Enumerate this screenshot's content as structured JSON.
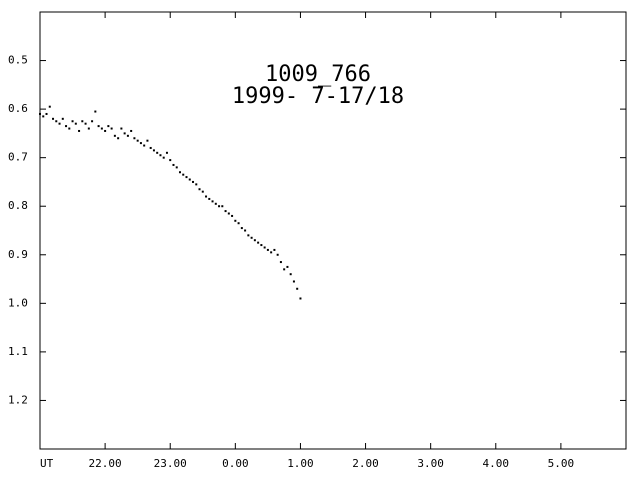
{
  "chart_data": {
    "type": "scatter",
    "title": "1009_766",
    "subtitle": "1999- 7-17/18",
    "xlabel": "UT",
    "xlim": [
      21,
      30
    ],
    "xticks": [
      {
        "value": 22,
        "label": "22.00"
      },
      {
        "value": 23,
        "label": "23.00"
      },
      {
        "value": 24,
        "label": "0.00"
      },
      {
        "value": 25,
        "label": "1.00"
      },
      {
        "value": 26,
        "label": "2.00"
      },
      {
        "value": 27,
        "label": "3.00"
      },
      {
        "value": 28,
        "label": "4.00"
      },
      {
        "value": 29,
        "label": "5.00"
      }
    ],
    "ylim": [
      0.4,
      1.3
    ],
    "invert_y": true,
    "yticks": [
      0.5,
      0.6,
      0.7,
      0.8,
      0.9,
      {
        "value": 1,
        "label": "1.0"
      },
      1.1,
      1.2
    ],
    "color": "#000000",
    "x": [
      21.0,
      21.05,
      21.1,
      21.15,
      21.2,
      21.25,
      21.3,
      21.35,
      21.4,
      21.45,
      21.5,
      21.55,
      21.6,
      21.65,
      21.7,
      21.75,
      21.8,
      21.85,
      21.9,
      21.95,
      22.0,
      22.05,
      22.1,
      22.15,
      22.2,
      22.25,
      22.3,
      22.35,
      22.4,
      22.45,
      22.5,
      22.55,
      22.6,
      22.65,
      22.7,
      22.75,
      22.8,
      22.85,
      22.9,
      22.95,
      23.0,
      23.05,
      23.1,
      23.15,
      23.2,
      23.25,
      23.3,
      23.35,
      23.4,
      23.45,
      23.5,
      23.55,
      23.6,
      23.65,
      23.7,
      23.75,
      23.8,
      23.85,
      23.9,
      23.95,
      24.0,
      24.05,
      24.1,
      24.15,
      24.2,
      24.25,
      24.3,
      24.35,
      24.4,
      24.45,
      24.5,
      24.55,
      24.6,
      24.65,
      24.7,
      24.75,
      24.8,
      24.85,
      24.9,
      24.95,
      25.0
    ],
    "values": [
      0.61,
      0.615,
      0.61,
      0.595,
      0.62,
      0.625,
      0.63,
      0.62,
      0.635,
      0.64,
      0.625,
      0.63,
      0.645,
      0.625,
      0.63,
      0.64,
      0.625,
      0.605,
      0.635,
      0.64,
      0.645,
      0.635,
      0.64,
      0.655,
      0.66,
      0.64,
      0.65,
      0.655,
      0.645,
      0.66,
      0.665,
      0.67,
      0.675,
      0.665,
      0.68,
      0.685,
      0.69,
      0.695,
      0.7,
      0.69,
      0.705,
      0.715,
      0.72,
      0.73,
      0.735,
      0.74,
      0.745,
      0.75,
      0.755,
      0.765,
      0.77,
      0.78,
      0.785,
      0.79,
      0.795,
      0.8,
      0.8,
      0.81,
      0.815,
      0.82,
      0.83,
      0.835,
      0.845,
      0.85,
      0.86,
      0.865,
      0.87,
      0.875,
      0.88,
      0.885,
      0.89,
      0.895,
      0.89,
      0.9,
      0.915,
      0.93,
      0.925,
      0.94,
      0.955,
      0.97,
      0.99
    ]
  }
}
